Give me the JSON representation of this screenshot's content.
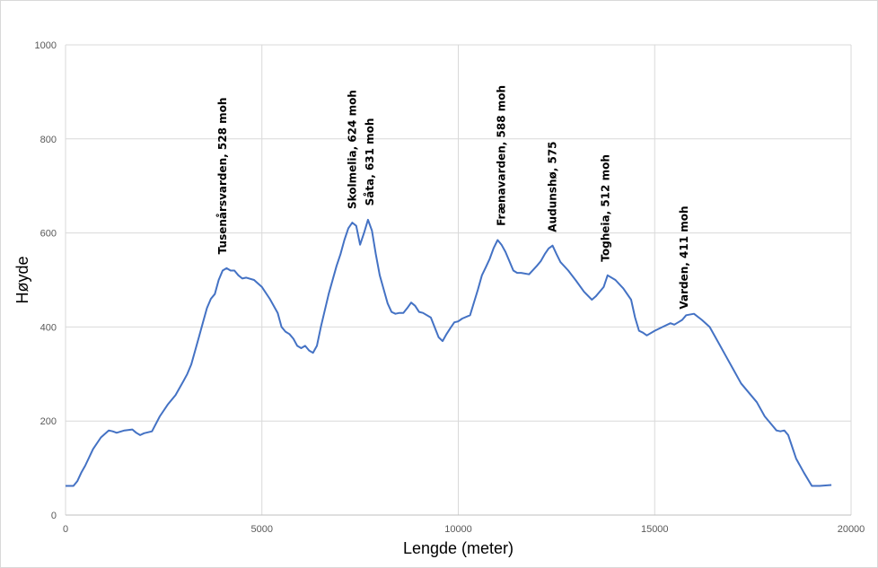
{
  "chart_data": {
    "type": "line",
    "title": "",
    "xlabel": "Lengde (meter)",
    "ylabel": "Høyde",
    "xlim": [
      0,
      20000
    ],
    "ylim": [
      0,
      1000
    ],
    "x_ticks": [
      0,
      5000,
      10000,
      15000,
      20000
    ],
    "y_ticks": [
      0,
      200,
      400,
      600,
      800,
      1000
    ],
    "grid": true,
    "legend": "none",
    "series_color": "#4472c4",
    "series": [
      {
        "x": [
          0,
          200,
          300,
          400,
          500,
          700,
          900,
          1100,
          1200,
          1300,
          1500,
          1700,
          1800,
          1900,
          2000,
          2200,
          2400,
          2600,
          2800,
          3000,
          3100,
          3200,
          3300,
          3400,
          3500,
          3600,
          3700,
          3800,
          3900,
          4000,
          4100,
          4200,
          4300,
          4400,
          4500,
          4600,
          4800,
          5000,
          5200,
          5400,
          5500,
          5600,
          5700,
          5800,
          5900,
          6000,
          6100,
          6200,
          6300,
          6400,
          6500,
          6700,
          6900,
          7000,
          7100,
          7200,
          7300,
          7400,
          7500,
          7600,
          7700,
          7800,
          7900,
          8000,
          8100,
          8200,
          8300,
          8400,
          8500,
          8600,
          8700,
          8800,
          8900,
          9000,
          9100,
          9300,
          9500,
          9600,
          9700,
          9800,
          9900,
          10000,
          10100,
          10300,
          10500,
          10600,
          10700,
          10800,
          10900,
          11000,
          11100,
          11200,
          11300,
          11400,
          11500,
          11600,
          11800,
          12000,
          12100,
          12200,
          12300,
          12400,
          12500,
          12600,
          12800,
          13000,
          13200,
          13400,
          13500,
          13600,
          13700,
          13800,
          14000,
          14200,
          14400,
          14500,
          14600,
          14700,
          14800,
          15000,
          15200,
          15400,
          15500,
          15600,
          15700,
          15800,
          16000,
          16200,
          16400,
          16600,
          16800,
          17000,
          17200,
          17400,
          17600,
          17800,
          18000,
          18100,
          18200,
          18300,
          18400,
          18500,
          18600,
          18800,
          19000,
          19200,
          19500
        ],
        "values": [
          62,
          62,
          72,
          90,
          105,
          140,
          165,
          180,
          178,
          175,
          180,
          182,
          175,
          170,
          174,
          178,
          210,
          235,
          255,
          285,
          300,
          320,
          350,
          380,
          410,
          440,
          460,
          470,
          500,
          520,
          525,
          520,
          520,
          510,
          503,
          505,
          500,
          485,
          460,
          430,
          400,
          390,
          385,
          375,
          360,
          355,
          360,
          350,
          345,
          360,
          400,
          470,
          530,
          555,
          585,
          610,
          622,
          615,
          575,
          600,
          628,
          605,
          555,
          510,
          480,
          450,
          432,
          428,
          430,
          430,
          440,
          452,
          445,
          432,
          430,
          420,
          378,
          370,
          385,
          398,
          410,
          412,
          418,
          425,
          480,
          510,
          527,
          545,
          568,
          585,
          575,
          560,
          540,
          520,
          515,
          515,
          512,
          530,
          540,
          555,
          567,
          573,
          555,
          538,
          520,
          498,
          475,
          458,
          465,
          475,
          485,
          510,
          500,
          482,
          458,
          420,
          392,
          388,
          382,
          392,
          400,
          408,
          405,
          410,
          415,
          425,
          428,
          415,
          400,
          370,
          340,
          310,
          280,
          260,
          240,
          210,
          190,
          180,
          178,
          180,
          170,
          145,
          120,
          90,
          62,
          62,
          64
        ]
      }
    ],
    "annotations": [
      {
        "text": "Tusenårsvarden, 528 moh",
        "x": 4000,
        "y": 528
      },
      {
        "text": "Skolmelia, 624 moh",
        "x": 7300,
        "y": 624
      },
      {
        "text": "Såta, 631 moh",
        "x": 7750,
        "y": 631
      },
      {
        "text": "Frænavarden, 588 moh",
        "x": 11100,
        "y": 588
      },
      {
        "text": "Audunshø, 575",
        "x": 12400,
        "y": 575
      },
      {
        "text": "Togheia, 512 moh",
        "x": 13750,
        "y": 512
      },
      {
        "text": "Varden, 411 moh",
        "x": 15750,
        "y": 411
      }
    ]
  }
}
